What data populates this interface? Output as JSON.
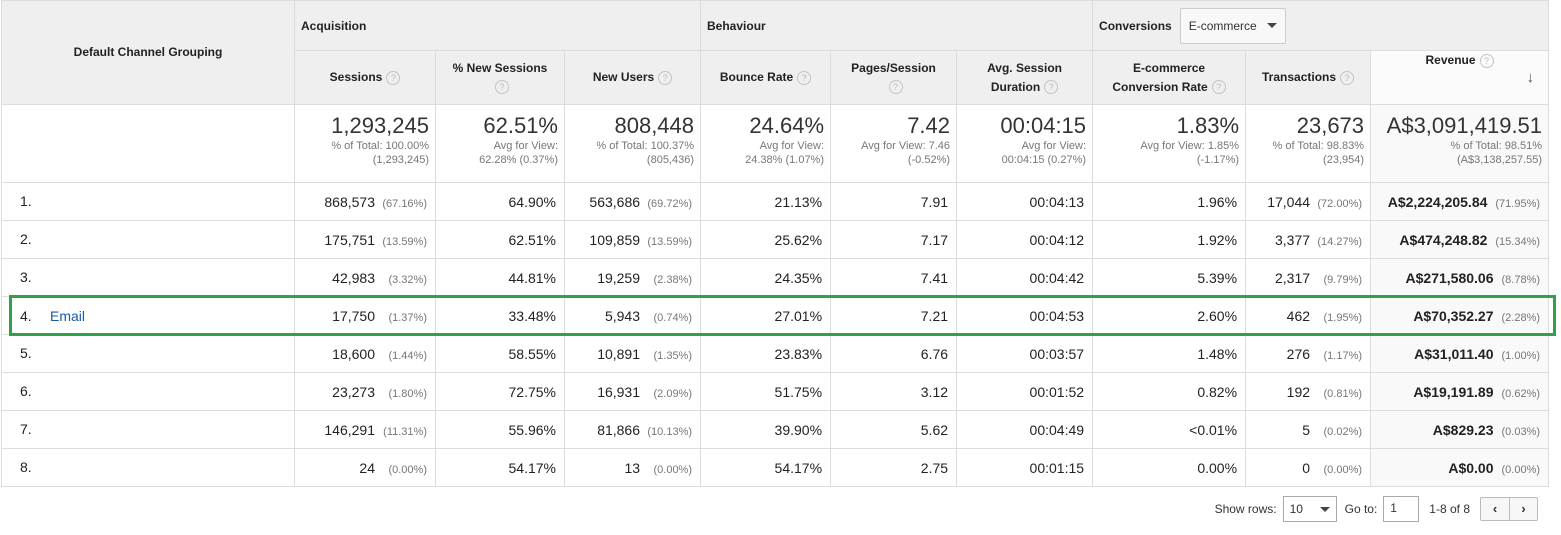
{
  "header": {
    "dimension_label": "Default Channel Grouping",
    "groups": {
      "acquisition": "Acquisition",
      "behaviour": "Behaviour",
      "conversions": "Conversions",
      "conversions_select": "E-commerce"
    },
    "columns": {
      "sessions": "Sessions",
      "new_sessions": "% New Sessions",
      "new_users": "New Users",
      "bounce_rate": "Bounce Rate",
      "pages_session": "Pages/Session",
      "avg_duration": "Avg. Session Duration",
      "conv_rate": "E-commerce Conversion Rate",
      "transactions": "Transactions",
      "revenue": "Revenue"
    },
    "help_glyph": "?",
    "sort_glyph": "↓"
  },
  "totals": {
    "sessions": {
      "value": "1,293,245",
      "sub1": "% of Total: 100.00%",
      "sub2": "(1,293,245)"
    },
    "new_sessions": {
      "value": "62.51%",
      "sub1": "Avg for View:",
      "sub2": "62.28% (0.37%)"
    },
    "new_users": {
      "value": "808,448",
      "sub1": "% of Total: 100.37%",
      "sub2": "(805,436)"
    },
    "bounce_rate": {
      "value": "24.64%",
      "sub1": "Avg for View:",
      "sub2": "24.38% (1.07%)"
    },
    "pages_session": {
      "value": "7.42",
      "sub1": "Avg for View: 7.46",
      "sub2": "(-0.52%)"
    },
    "avg_duration": {
      "value": "00:04:15",
      "sub1": "Avg for View:",
      "sub2": "00:04:15 (0.27%)"
    },
    "conv_rate": {
      "value": "1.83%",
      "sub1": "Avg for View: 1.85%",
      "sub2": "(-1.17%)"
    },
    "transactions": {
      "value": "23,673",
      "sub1": "% of Total: 98.83%",
      "sub2": "(23,954)"
    },
    "revenue": {
      "value": "A$3,091,419.51",
      "sub1": "% of Total: 98.51%",
      "sub2": "(A$3,138,257.55)"
    }
  },
  "rows": [
    {
      "num": "1.",
      "name": "",
      "sessions": "868,573",
      "sessions_pct": "(67.16%)",
      "new_sessions": "64.90%",
      "new_users": "563,686",
      "new_users_pct": "(69.72%)",
      "bounce_rate": "21.13%",
      "pages_session": "7.91",
      "avg_duration": "00:04:13",
      "conv_rate": "1.96%",
      "transactions": "17,044",
      "transactions_pct": "(72.00%)",
      "revenue": "A$2,224,205.84",
      "revenue_pct": "(71.95%)"
    },
    {
      "num": "2.",
      "name": "",
      "sessions": "175,751",
      "sessions_pct": "(13.59%)",
      "new_sessions": "62.51%",
      "new_users": "109,859",
      "new_users_pct": "(13.59%)",
      "bounce_rate": "25.62%",
      "pages_session": "7.17",
      "avg_duration": "00:04:12",
      "conv_rate": "1.92%",
      "transactions": "3,377",
      "transactions_pct": "(14.27%)",
      "revenue": "A$474,248.82",
      "revenue_pct": "(15.34%)"
    },
    {
      "num": "3.",
      "name": "",
      "sessions": "42,983",
      "sessions_pct": "(3.32%)",
      "new_sessions": "44.81%",
      "new_users": "19,259",
      "new_users_pct": "(2.38%)",
      "bounce_rate": "24.35%",
      "pages_session": "7.41",
      "avg_duration": "00:04:42",
      "conv_rate": "5.39%",
      "transactions": "2,317",
      "transactions_pct": "(9.79%)",
      "revenue": "A$271,580.06",
      "revenue_pct": "(8.78%)"
    },
    {
      "num": "4.",
      "name": "Email",
      "sessions": "17,750",
      "sessions_pct": "(1.37%)",
      "new_sessions": "33.48%",
      "new_users": "5,943",
      "new_users_pct": "(0.74%)",
      "bounce_rate": "27.01%",
      "pages_session": "7.21",
      "avg_duration": "00:04:53",
      "conv_rate": "2.60%",
      "transactions": "462",
      "transactions_pct": "(1.95%)",
      "revenue": "A$70,352.27",
      "revenue_pct": "(2.28%)"
    },
    {
      "num": "5.",
      "name": "",
      "sessions": "18,600",
      "sessions_pct": "(1.44%)",
      "new_sessions": "58.55%",
      "new_users": "10,891",
      "new_users_pct": "(1.35%)",
      "bounce_rate": "23.83%",
      "pages_session": "6.76",
      "avg_duration": "00:03:57",
      "conv_rate": "1.48%",
      "transactions": "276",
      "transactions_pct": "(1.17%)",
      "revenue": "A$31,011.40",
      "revenue_pct": "(1.00%)"
    },
    {
      "num": "6.",
      "name": "",
      "sessions": "23,273",
      "sessions_pct": "(1.80%)",
      "new_sessions": "72.75%",
      "new_users": "16,931",
      "new_users_pct": "(2.09%)",
      "bounce_rate": "51.75%",
      "pages_session": "3.12",
      "avg_duration": "00:01:52",
      "conv_rate": "0.82%",
      "transactions": "192",
      "transactions_pct": "(0.81%)",
      "revenue": "A$19,191.89",
      "revenue_pct": "(0.62%)"
    },
    {
      "num": "7.",
      "name": "",
      "sessions": "146,291",
      "sessions_pct": "(11.31%)",
      "new_sessions": "55.96%",
      "new_users": "81,866",
      "new_users_pct": "(10.13%)",
      "bounce_rate": "39.90%",
      "pages_session": "5.62",
      "avg_duration": "00:04:49",
      "conv_rate": "<0.01%",
      "transactions": "5",
      "transactions_pct": "(0.02%)",
      "revenue": "A$829.23",
      "revenue_pct": "(0.03%)"
    },
    {
      "num": "8.",
      "name": "",
      "sessions": "24",
      "sessions_pct": "(0.00%)",
      "new_sessions": "54.17%",
      "new_users": "13",
      "new_users_pct": "(0.00%)",
      "bounce_rate": "54.17%",
      "pages_session": "2.75",
      "avg_duration": "00:01:15",
      "conv_rate": "0.00%",
      "transactions": "0",
      "transactions_pct": "(0.00%)",
      "revenue": "A$0.00",
      "revenue_pct": "(0.00%)"
    }
  ],
  "footer": {
    "show_rows_label": "Show rows:",
    "show_rows_value": "10",
    "goto_label": "Go to:",
    "goto_value": "1",
    "range": "1-8 of 8",
    "prev_glyph": "‹",
    "next_glyph": "›"
  },
  "colors": {
    "highlight": "#2ea24a",
    "link": "#1a5aa6"
  }
}
